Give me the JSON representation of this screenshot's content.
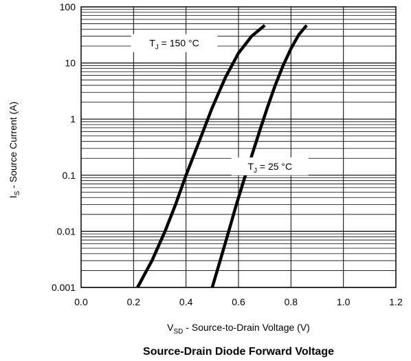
{
  "chart_data": {
    "type": "line",
    "title": "Source-Drain Diode Forward Voltage",
    "xlabel": {
      "main": "V",
      "sub": "SD",
      "rest": " - Source-to-Drain Voltage (V)"
    },
    "ylabel": {
      "main": "I",
      "sub": "S",
      "rest": " - Source Current (A)"
    },
    "xlim": [
      0.0,
      1.2
    ],
    "ylim": [
      0.001,
      100
    ],
    "yscale": "log",
    "x_ticks": [
      "0.0",
      "0.2",
      "0.4",
      "0.6",
      "0.8",
      "1.0",
      "1.2"
    ],
    "y_ticks": [
      "0.001",
      "0.01",
      "0.1",
      "1",
      "10",
      "100"
    ],
    "grid": true,
    "series": [
      {
        "name": "T_J = 150 °C",
        "label": {
          "main": "T",
          "sub": "J",
          "rest": " = 150 °C"
        },
        "x": [
          0.215,
          0.27,
          0.32,
          0.36,
          0.4,
          0.45,
          0.5,
          0.55,
          0.6,
          0.65,
          0.7
        ],
        "y": [
          0.001,
          0.003,
          0.01,
          0.03,
          0.1,
          0.4,
          1.6,
          5.5,
          15,
          30,
          47
        ]
      },
      {
        "name": "T_J = 25 °C",
        "label": {
          "main": "T",
          "sub": "J",
          "rest": " = 25 °C"
        },
        "x": [
          0.5,
          0.53,
          0.56,
          0.59,
          0.62,
          0.65,
          0.68,
          0.71,
          0.74,
          0.77,
          0.8,
          0.83,
          0.86
        ],
        "y": [
          0.001,
          0.003,
          0.009,
          0.028,
          0.08,
          0.22,
          0.6,
          1.6,
          4,
          9,
          18,
          32,
          47
        ]
      }
    ]
  }
}
